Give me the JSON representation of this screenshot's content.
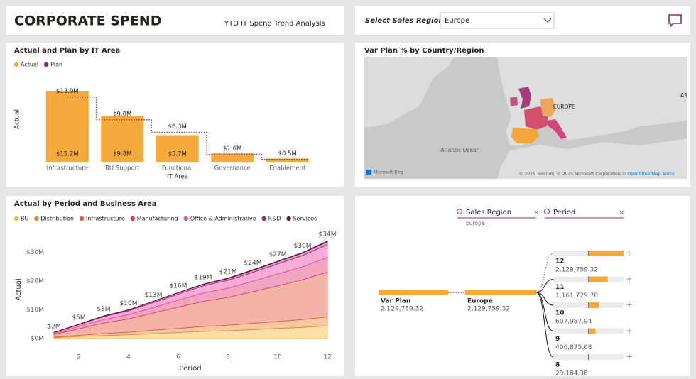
{
  "header": {
    "title": "CORPORATE SPEND",
    "subtitle": "YTD IT Spend Trend Analysis"
  },
  "filter": {
    "label": "Select Sales Region",
    "value": "Europe"
  },
  "chart_data": [
    {
      "type": "bar",
      "title": "Actual and Plan by IT Area",
      "x_label": "IT Area",
      "y_label": "Actual",
      "categories": [
        "Infrastructure",
        "BU Support",
        "Functional",
        "Governance",
        "Enablement"
      ],
      "series": [
        {
          "name": "Actual",
          "color": "#f6a93b",
          "values": [
            15.2,
            9.8,
            5.7,
            1.8,
            0.7
          ],
          "value_labels": [
            "$15.2M",
            "$9.8M",
            "$5.7M",
            null,
            null
          ]
        },
        {
          "name": "Plan",
          "color": "#8e2d6e",
          "line_style": "dotted",
          "values": [
            13.9,
            9.0,
            6.3,
            1.6,
            0.5
          ],
          "value_labels": [
            "$13.9M",
            "$9.0M",
            "$6.3M",
            "$1.6M",
            "$0.5M"
          ]
        }
      ]
    },
    {
      "type": "area",
      "stacked": true,
      "title": "Actual by Period and Business Area",
      "x_label": "Period",
      "y_label": "Actual",
      "x": [
        1,
        2,
        3,
        4,
        5,
        6,
        7,
        8,
        9,
        10,
        11,
        12
      ],
      "xlim": [
        1,
        12
      ],
      "xticks": [
        2,
        4,
        6,
        8,
        10,
        12
      ],
      "ylim": [
        0,
        35
      ],
      "yticks": [
        {
          "value": 0,
          "label": "$0M"
        },
        {
          "value": 10,
          "label": "$10M"
        },
        {
          "value": 20,
          "label": "$20M"
        },
        {
          "value": 30,
          "label": "$30M"
        }
      ],
      "series": [
        {
          "name": "BU",
          "color": "#f6b93b",
          "values": [
            0.3,
            0.7,
            1.0,
            1.3,
            1.7,
            2.1,
            2.5,
            2.7,
            3.1,
            3.5,
            3.9,
            4.4
          ]
        },
        {
          "name": "Distribution",
          "color": "#e8842f",
          "values": [
            0.2,
            0.4,
            0.7,
            0.9,
            1.2,
            1.4,
            1.7,
            1.9,
            2.2,
            2.4,
            2.7,
            3.1
          ]
        },
        {
          "name": "Infrastructure",
          "color": "#e4563f",
          "values": [
            0.9,
            2.3,
            3.7,
            4.6,
            6.0,
            7.4,
            8.7,
            9.7,
            11.0,
            12.4,
            13.8,
            15.6
          ]
        },
        {
          "name": "Manufacturing",
          "color": "#e03a72",
          "values": [
            0.3,
            0.8,
            1.2,
            1.5,
            1.9,
            2.4,
            2.9,
            3.2,
            3.6,
            4.1,
            4.5,
            5.1
          ]
        },
        {
          "name": "Office & Administrative",
          "color": "#e84aa8",
          "values": [
            0.3,
            0.6,
            1.0,
            1.3,
            1.7,
            2.1,
            2.5,
            2.7,
            3.1,
            3.5,
            3.9,
            4.4
          ]
        },
        {
          "name": "R&D",
          "color": "#9b2777",
          "values": [
            0.1,
            0.1,
            0.2,
            0.3,
            0.4,
            0.5,
            0.5,
            0.6,
            0.7,
            0.8,
            0.9,
            1.0
          ]
        },
        {
          "name": "Services",
          "color": "#5e1a3a",
          "values": [
            0.1,
            0.1,
            0.1,
            0.1,
            0.1,
            0.1,
            0.1,
            0.2,
            0.2,
            0.2,
            0.2,
            0.3
          ]
        }
      ],
      "totals": {
        "values": [
          2,
          5,
          8,
          10,
          13,
          16,
          19,
          21,
          24,
          27,
          30,
          34
        ],
        "value_labels": [
          "$2M",
          "$5M",
          "$8M",
          "$10M",
          "$13M",
          "$16M",
          "$19M",
          "$21M",
          "$24M",
          "$27M",
          "$30M",
          "$34M"
        ]
      }
    }
  ],
  "map": {
    "title": "Var Plan % by Country/Region",
    "labels": [
      "EUROPE",
      "Atlantic Ocean",
      "AS"
    ],
    "provider": "Microsoft Bing",
    "attribution": "© 2025 TomTom, © 2025 Microsoft Corporation",
    "links": [
      "© OpenStreetMap",
      "Terms"
    ]
  },
  "decomposition_tree": {
    "fields": [
      {
        "name": "Sales Region",
        "selected": "Europe"
      },
      {
        "name": "Period"
      }
    ],
    "root": {
      "label": "Var Plan",
      "value": {
        "value": 2129759.32,
        "label": "2,129,759.32"
      }
    },
    "level1": {
      "label": "Europe",
      "value": {
        "value": 2129759.32,
        "label": "2,129,759.32"
      }
    },
    "level2": [
      {
        "label": "12",
        "value": {
          "value": 2129759.32,
          "label": "2,129,759.32"
        }
      },
      {
        "label": "11",
        "value": {
          "value": 1161729.7,
          "label": "1,161,729.70"
        }
      },
      {
        "label": "10",
        "value": {
          "value": 607987.94,
          "label": "607,987.94"
        }
      },
      {
        "label": "9",
        "value": {
          "value": 406875.68,
          "label": "406,875.68"
        }
      },
      {
        "label": "8",
        "value": {
          "value": 29184.38,
          "label": "29,184.38"
        }
      }
    ]
  }
}
